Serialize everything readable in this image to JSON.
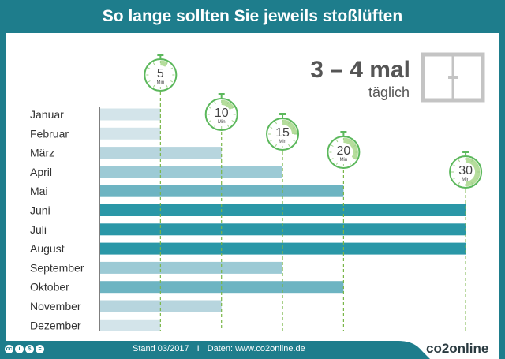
{
  "header": {
    "title": "So lange sollten Sie jeweils stoßlüften"
  },
  "frequency": {
    "big": "3 – 4 mal",
    "small": "täglich"
  },
  "footer": {
    "stand": "Stand 03/2017",
    "separator": "I",
    "daten": "Daten: www.co2online.de",
    "logo": "co2online",
    "license_icons": [
      "cc-icon",
      "by-icon",
      "nc-icon",
      "nd-icon"
    ]
  },
  "colors": {
    "brand": "#1e7d8c",
    "timer": "#5cb85c"
  },
  "chart_data": {
    "type": "bar",
    "orientation": "horizontal",
    "categories": [
      "Januar",
      "Februar",
      "März",
      "April",
      "Mai",
      "Juni",
      "Juli",
      "August",
      "September",
      "Oktober",
      "November",
      "Dezember"
    ],
    "values": [
      5,
      5,
      10,
      15,
      20,
      30,
      30,
      30,
      15,
      20,
      10,
      5
    ],
    "unit": "Min",
    "markers": [
      5,
      10,
      15,
      20,
      30
    ],
    "bar_colors": {
      "5": "#d3e4ea",
      "10": "#b7d5de",
      "15": "#9ccad5",
      "20": "#6db4c2",
      "30": "#2a97a7"
    }
  }
}
